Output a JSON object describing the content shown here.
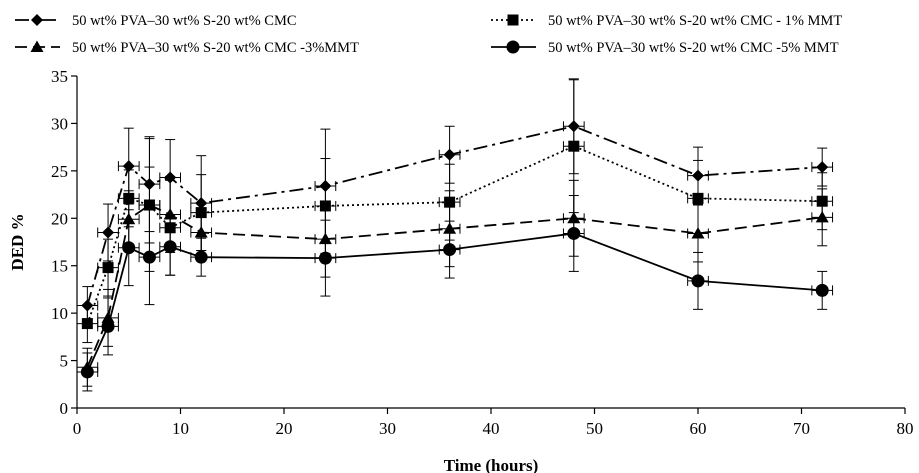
{
  "chart_data": {
    "type": "line",
    "xlabel": "Time (hours)",
    "ylabel": "DED %",
    "xlim": [
      0,
      80
    ],
    "ylim": [
      0,
      35
    ],
    "x_ticks": [
      0,
      10,
      20,
      30,
      40,
      50,
      60,
      70,
      80
    ],
    "y_ticks": [
      0,
      5,
      10,
      15,
      20,
      25,
      30,
      35
    ],
    "grid": false,
    "legend_position": "top",
    "series": [
      {
        "name": "50 wt% PVA–30 wt% S-20 wt% CMC",
        "marker": "diamond",
        "dash": "dash-dot",
        "x": [
          1,
          3,
          5,
          7,
          9,
          12,
          24,
          36,
          48,
          60,
          72
        ],
        "y": [
          10.8,
          18.5,
          25.5,
          23.6,
          24.3,
          21.6,
          23.4,
          26.7,
          29.7,
          24.5,
          25.4
        ],
        "y_err": [
          2.0,
          3.0,
          4.0,
          5.0,
          4.0,
          5.0,
          6.0,
          3.0,
          5.0,
          3.0,
          2.0
        ],
        "x_err": [
          1,
          1,
          1,
          1,
          1,
          1,
          1,
          1,
          1,
          1,
          1
        ]
      },
      {
        "name": "50 wt% PVA–30 wt% S-20 wt% CMC - 1% MMT",
        "marker": "square",
        "dash": "dotted",
        "x": [
          1,
          3,
          5,
          7,
          9,
          12,
          24,
          36,
          48,
          60,
          72
        ],
        "y": [
          8.9,
          14.8,
          22.1,
          21.4,
          19.0,
          20.6,
          21.3,
          21.7,
          27.6,
          22.1,
          21.8
        ],
        "y_err": [
          2.0,
          3.0,
          3.0,
          7.0,
          5.0,
          4.0,
          5.0,
          4.0,
          7.0,
          4.0,
          3.0
        ],
        "x_err": [
          1,
          1,
          1,
          1,
          1,
          1,
          1,
          1,
          1,
          1,
          1
        ]
      },
      {
        "name": "50 wt% PVA–30 wt% S-20 wt% CMC -3%MMT",
        "marker": "triangle",
        "dash": "dashed",
        "x": [
          1,
          3,
          5,
          7,
          9,
          12,
          24,
          36,
          48,
          60,
          72
        ],
        "y": [
          4.3,
          9.5,
          19.9,
          21.4,
          20.4,
          18.5,
          17.8,
          18.9,
          20.0,
          18.4,
          20.1
        ],
        "y_err": [
          2.0,
          3.0,
          3.0,
          4.0,
          4.0,
          3.0,
          4.0,
          4.0,
          4.0,
          3.0,
          3.0
        ],
        "x_err": [
          1,
          1,
          1,
          1,
          1,
          1,
          1,
          1,
          1,
          1,
          1
        ]
      },
      {
        "name": "50 wt% PVA–30 wt% S-20 wt% CMC -5% MMT",
        "marker": "circle",
        "dash": "solid",
        "x": [
          1,
          3,
          5,
          7,
          9,
          12,
          24,
          36,
          48,
          60,
          72
        ],
        "y": [
          3.8,
          8.6,
          16.9,
          15.9,
          17.0,
          15.9,
          15.8,
          16.7,
          18.4,
          13.4,
          12.4
        ],
        "y_err": [
          2.0,
          3.0,
          4.0,
          5.0,
          3.0,
          2.0,
          4.0,
          3.0,
          4.0,
          3.0,
          2.0
        ],
        "x_err": [
          1,
          1,
          1,
          1,
          1,
          1,
          1,
          1,
          1,
          1,
          1
        ]
      }
    ]
  }
}
